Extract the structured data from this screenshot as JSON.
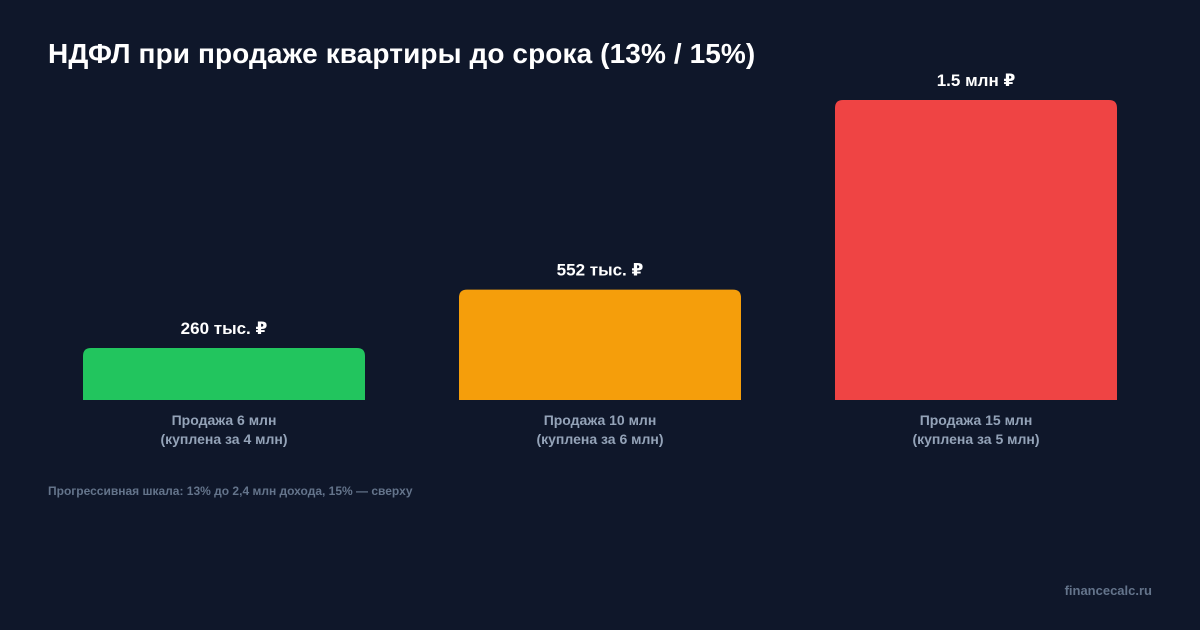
{
  "title": "НДФЛ при продаже квартиры до срока (13% / 15%)",
  "footnote": "Прогрессивная шкала: 13% до 2,4 млн дохода, 15% — сверху",
  "brand": "financecalc.ru",
  "chart_data": {
    "type": "bar",
    "title": "НДФЛ при продаже квартиры до срока (13% / 15%)",
    "categories": [
      [
        "Продажа 6 млн",
        "(куплена за 4 млн)"
      ],
      [
        "Продажа 10 млн",
        "(куплена за 6 млн)"
      ],
      [
        "Продажа 15 млн",
        "(куплена за 5 млн)"
      ]
    ],
    "values": [
      260000,
      552000,
      1500000
    ],
    "value_labels": [
      "260 тыс. ₽",
      "552 тыс. ₽",
      "1.5 млн ₽"
    ],
    "colors": [
      "#22c55e",
      "#f59e0b",
      "#ef4444"
    ],
    "ylim": [
      0,
      1500000
    ],
    "grid": false,
    "legend": "none"
  }
}
